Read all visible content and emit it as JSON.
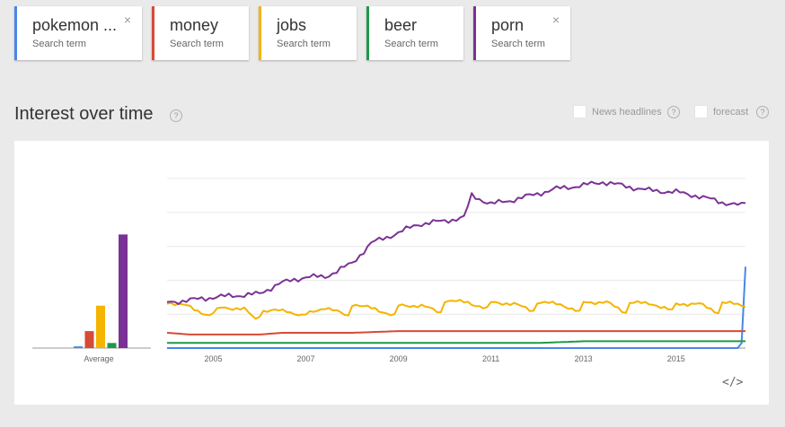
{
  "terms": [
    {
      "name": "pokemon ...",
      "sub": "Search term",
      "color": "#4a86e8",
      "closable": true,
      "close_glyph": "×"
    },
    {
      "name": "money",
      "sub": "Search term",
      "color": "#d64a36",
      "closable": false
    },
    {
      "name": "jobs",
      "sub": "Search term",
      "color": "#f4b400",
      "closable": false
    },
    {
      "name": "beer",
      "sub": "Search term",
      "color": "#1d9a48",
      "closable": false
    },
    {
      "name": "porn",
      "sub": "Search term",
      "color": "#7b3294",
      "closable": true,
      "close_glyph": "×"
    }
  ],
  "section": {
    "title": "Interest over time",
    "help_glyph": "?"
  },
  "options": {
    "news_headlines": {
      "label": "News headlines",
      "checked": false,
      "help_glyph": "?"
    },
    "forecast": {
      "label": "forecast",
      "checked": false,
      "help_glyph": "?"
    }
  },
  "embed_glyph": "</>",
  "chart_data": {
    "type": "line",
    "x_start": "2004-01",
    "x_end": "2016-07",
    "x_ticks": [
      "2005",
      "2007",
      "2009",
      "2011",
      "2013",
      "2015"
    ],
    "ylim": [
      0,
      100
    ],
    "grid": true,
    "legend": "none",
    "average_label": "Average",
    "averages": [
      {
        "name": "pokemon ...",
        "value": 1
      },
      {
        "name": "money",
        "value": 10
      },
      {
        "name": "jobs",
        "value": 25
      },
      {
        "name": "beer",
        "value": 3
      },
      {
        "name": "porn",
        "value": 67
      }
    ],
    "series": [
      {
        "name": "pokemon ...",
        "color": "#4a86e8",
        "keyframes": [
          [
            "2004-01",
            0
          ],
          [
            "2016-05",
            0
          ],
          [
            "2016-06",
            3
          ],
          [
            "2016-07",
            48
          ]
        ]
      },
      {
        "name": "money",
        "color": "#d64a36",
        "keyframes": [
          [
            "2004-01",
            9
          ],
          [
            "2004-07",
            8
          ],
          [
            "2006-01",
            8
          ],
          [
            "2006-07",
            9
          ],
          [
            "2008-01",
            9
          ],
          [
            "2009-01",
            10
          ],
          [
            "2010-01",
            10
          ],
          [
            "2012-01",
            10
          ],
          [
            "2014-01",
            10
          ],
          [
            "2016-07",
            10
          ]
        ]
      },
      {
        "name": "jobs",
        "color": "#f4b400",
        "keyframes": [
          [
            "2004-01",
            27
          ],
          [
            "2004-06",
            25
          ],
          [
            "2004-12",
            19
          ],
          [
            "2005-03",
            24
          ],
          [
            "2005-09",
            23
          ],
          [
            "2005-12",
            17
          ],
          [
            "2006-02",
            22
          ],
          [
            "2006-08",
            22
          ],
          [
            "2006-12",
            19
          ],
          [
            "2007-06",
            24
          ],
          [
            "2007-12",
            19
          ],
          [
            "2008-01",
            26
          ],
          [
            "2008-07",
            23
          ],
          [
            "2008-12",
            19
          ],
          [
            "2009-01",
            25
          ],
          [
            "2009-07",
            25
          ],
          [
            "2009-12",
            21
          ],
          [
            "2010-01",
            28
          ],
          [
            "2010-07",
            27
          ],
          [
            "2010-12",
            23
          ],
          [
            "2011-01",
            27
          ],
          [
            "2011-07",
            26
          ],
          [
            "2011-12",
            22
          ],
          [
            "2012-01",
            27
          ],
          [
            "2012-07",
            26
          ],
          [
            "2012-12",
            21
          ],
          [
            "2013-01",
            27
          ],
          [
            "2013-07",
            27
          ],
          [
            "2013-12",
            21
          ],
          [
            "2014-01",
            27
          ],
          [
            "2014-07",
            26
          ],
          [
            "2014-12",
            22
          ],
          [
            "2015-01",
            26
          ],
          [
            "2015-07",
            26
          ],
          [
            "2015-12",
            21
          ],
          [
            "2016-01",
            27
          ],
          [
            "2016-07",
            25
          ]
        ]
      },
      {
        "name": "beer",
        "color": "#1d9a48",
        "keyframes": [
          [
            "2004-01",
            3
          ],
          [
            "2004-07",
            3
          ],
          [
            "2006-01",
            3
          ],
          [
            "2008-01",
            3
          ],
          [
            "2010-01",
            3
          ],
          [
            "2012-01",
            3
          ],
          [
            "2013-01",
            4
          ],
          [
            "2014-01",
            4
          ],
          [
            "2015-01",
            4
          ],
          [
            "2016-07",
            4
          ]
        ]
      },
      {
        "name": "porn",
        "color": "#7b3294",
        "keyframes": [
          [
            "2004-01",
            27
          ],
          [
            "2004-06",
            28
          ],
          [
            "2005-01",
            30
          ],
          [
            "2005-07",
            31
          ],
          [
            "2006-01",
            32
          ],
          [
            "2006-06",
            38
          ],
          [
            "2007-01",
            42
          ],
          [
            "2007-06",
            42
          ],
          [
            "2008-01",
            50
          ],
          [
            "2008-06",
            62
          ],
          [
            "2009-01",
            68
          ],
          [
            "2009-06",
            73
          ],
          [
            "2010-01",
            75
          ],
          [
            "2010-06",
            77
          ],
          [
            "2010-08",
            90
          ],
          [
            "2011-01",
            85
          ],
          [
            "2011-06",
            87
          ],
          [
            "2012-01",
            91
          ],
          [
            "2012-06",
            94
          ],
          [
            "2013-01",
            96
          ],
          [
            "2013-06",
            98
          ],
          [
            "2014-01",
            95
          ],
          [
            "2014-06",
            93
          ],
          [
            "2015-01",
            92
          ],
          [
            "2015-06",
            90
          ],
          [
            "2016-01",
            86
          ],
          [
            "2016-06",
            84
          ],
          [
            "2016-07",
            86
          ]
        ]
      }
    ]
  }
}
